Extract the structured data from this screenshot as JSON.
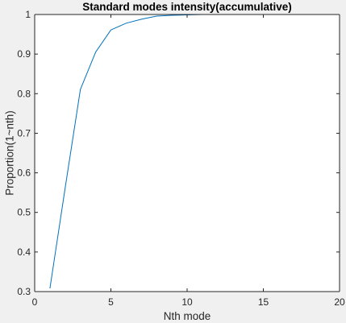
{
  "chart_data": {
    "type": "line",
    "title": "Standard modes intensity(accumulative)",
    "xlabel": "Nth mode",
    "ylabel": "Proportion(1~nth)",
    "xlim": [
      0,
      20
    ],
    "ylim": [
      0.3,
      1
    ],
    "xticks": [
      0,
      5,
      10,
      15,
      20
    ],
    "yticks": [
      0.3,
      0.4,
      0.5,
      0.6,
      0.7,
      0.8,
      0.9,
      1
    ],
    "xtick_labels": [
      "0",
      "5",
      "10",
      "15",
      "20"
    ],
    "ytick_labels": [
      "0.3",
      "0.4",
      "0.5",
      "0.6",
      "0.7",
      "0.8",
      "0.9",
      "1"
    ],
    "grid": false,
    "series": [
      {
        "x": [
          1,
          2,
          3,
          4,
          5,
          6,
          7,
          8,
          9,
          10,
          11,
          12,
          13,
          14,
          15,
          16,
          17,
          18,
          19,
          20
        ],
        "values": [
          0.308,
          0.562,
          0.811,
          0.905,
          0.961,
          0.978,
          0.988,
          0.996,
          0.998,
          0.999,
          1.0,
          1.0,
          1.0,
          1.0,
          1.0,
          1.0,
          1.0,
          1.0,
          1.0,
          1.0
        ]
      }
    ],
    "colors": {
      "line": "#0072bd",
      "axes": "#262626",
      "plot_background": "#ffffff",
      "figure_background": "#f0f0f0"
    }
  }
}
